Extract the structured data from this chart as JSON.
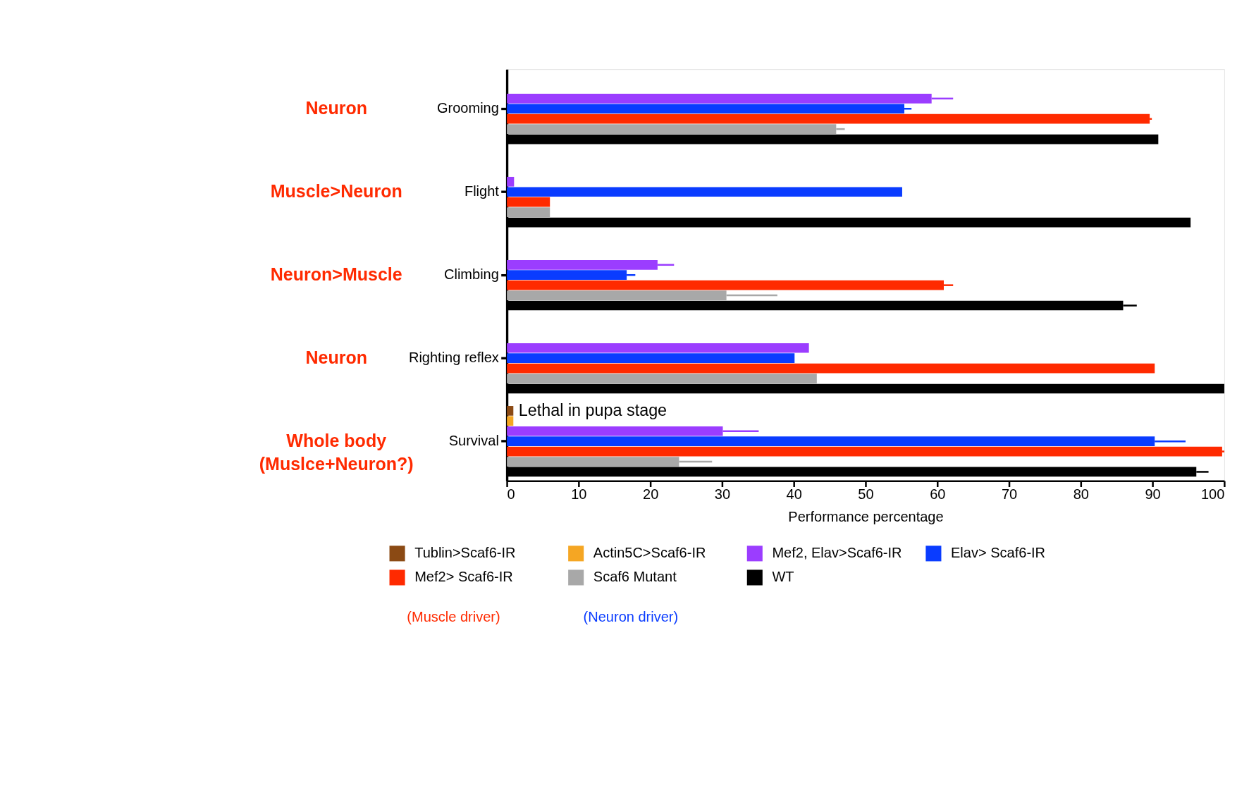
{
  "chart_data": {
    "type": "bar",
    "orientation": "horizontal",
    "xlabel": "Performance percentage",
    "categories": [
      "Grooming",
      "Flight",
      "Climbing",
      "Righting reflex",
      "Survival"
    ],
    "series": [
      {
        "name": "Tublin>Scaf6-IR",
        "color": "#8b4a14",
        "values": [
          null,
          null,
          null,
          null,
          0.9
        ]
      },
      {
        "name": "Actin5C>Scaf6-IR",
        "color": "#f5a623",
        "values": [
          null,
          null,
          null,
          null,
          0.9
        ]
      },
      {
        "name": "Mef2, Elav>Scaf6-IR",
        "color": "#9b3dff",
        "values": [
          59.2,
          1,
          21,
          42.1,
          30.1
        ],
        "errors": [
          3,
          null,
          2.3,
          null,
          5
        ]
      },
      {
        "name": "Elav> Scaf6-IR",
        "color": "#0a3cff",
        "values": [
          55.4,
          55.1,
          16.7,
          40.1,
          90.3
        ],
        "errors": [
          1,
          null,
          1.2,
          null,
          4.3
        ]
      },
      {
        "name": "Mef2> Scaf6-IR",
        "color": "#ff2a00",
        "values": [
          89.6,
          6,
          60.9,
          90.3,
          99.7
        ],
        "errors": [
          0.3,
          null,
          1.3,
          null,
          0.3
        ]
      },
      {
        "name": "Scaf6 Mutant",
        "color": "#a8a8a8",
        "values": [
          45.9,
          6,
          30.6,
          43.2,
          24
        ],
        "errors": [
          1.2,
          null,
          7.1,
          null,
          4.6
        ]
      },
      {
        "name": "WT",
        "color": "#000000",
        "values": [
          90.8,
          95.3,
          85.9,
          100,
          96.1
        ],
        "errors": [
          null,
          null,
          1.9,
          null,
          1.7
        ]
      }
    ],
    "xlim": [
      0,
      100
    ],
    "xticks": [
      0,
      10,
      20,
      30,
      40,
      50,
      60,
      70,
      80,
      90,
      100
    ],
    "grid": false,
    "legend": "bottom",
    "annotations": [
      "Neuron",
      "Muscle>Neuron",
      "Neuron>Muscle",
      "Neuron",
      "Whole body\n(Muslce+Neuron?)",
      "Lethal in pupa stage",
      "(Muscle driver)",
      "(Neuron driver)"
    ]
  }
}
